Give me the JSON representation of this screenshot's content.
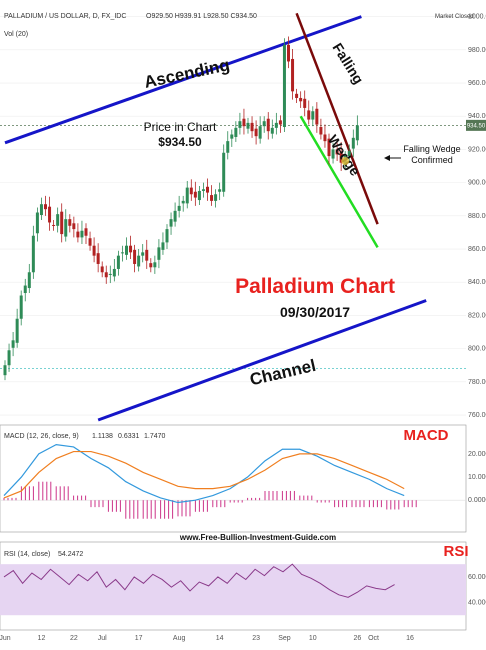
{
  "header": {
    "symbol": "PALLADIUM / US DOLLAR, D, FX_IDC",
    "ohlc": "O929.50  H939.91  L928.50  C934.50",
    "volume": "Vol (20)",
    "market_status": "Market Closed"
  },
  "annotations": {
    "title": "Palladium Chart",
    "date": "09/30/2017",
    "price_label": "Price in Chart",
    "price_value": "$934.50",
    "ascending": "Ascending",
    "channel": "Channel",
    "falling": "Falling",
    "wedge": "Wedge",
    "wedge_note_1": "Falling Wedge",
    "wedge_note_2": "Confirmed",
    "website": "www.Free-Bullion-Investment-Guide.com",
    "macd_tag": "MACD",
    "rsi_tag": "RSI"
  },
  "colors": {
    "up_candle": "#2e8b57",
    "down_candle": "#b22222",
    "channel": "#1515c8",
    "falling_line": "#7a0a0a",
    "wedge_line": "#22dd22",
    "title_red": "#e8221f",
    "macd_line": "#3399dd",
    "signal_line": "#f07f20",
    "histogram": "#cc3388",
    "rsi_line": "#8a3a8a",
    "rsi_band": "#e6d5f2"
  },
  "chart_data": [
    {
      "type": "candlestick",
      "title": "Palladium Chart",
      "subtitle": "09/30/2017",
      "y_ticks": [
        760,
        780,
        800,
        820,
        840,
        860,
        880,
        900,
        920,
        940,
        960,
        980,
        1000
      ],
      "y_tick_labels": [
        "760.00",
        "780.00",
        "800.00",
        "820.00",
        "840.00",
        "860.00",
        "880.00",
        "900.00",
        "920.00",
        "940.00",
        "960.00",
        "980.00",
        "1000.00"
      ],
      "x_tick_labels": [
        "Jun",
        "12",
        "22",
        "Jul",
        "17",
        "Aug",
        "14",
        "23",
        "Sep",
        "10",
        "26",
        "Oct",
        "16"
      ],
      "x_tick_index": [
        0,
        9,
        17,
        24,
        33,
        43,
        53,
        62,
        69,
        76,
        87,
        91,
        100
      ],
      "last_price": "934.50",
      "close_line": 934.5,
      "support_line": 788,
      "closes": [
        790,
        799,
        805,
        818,
        832,
        838,
        846,
        868,
        882,
        887,
        884,
        876,
        874,
        881,
        869,
        878,
        874,
        872,
        867,
        871,
        868,
        862,
        856,
        851,
        846,
        843,
        845,
        848,
        856,
        858,
        862,
        858,
        851,
        856,
        858,
        853,
        849,
        852,
        861,
        864,
        872,
        878,
        883,
        886,
        889,
        897,
        893,
        891,
        895,
        896,
        894,
        889,
        893,
        896,
        918,
        925,
        929,
        933,
        937,
        934,
        936,
        931,
        928,
        934,
        937,
        931,
        933,
        936,
        935,
        983,
        973,
        955,
        951,
        949,
        945,
        938,
        943,
        935,
        929,
        925,
        916,
        920,
        917,
        912,
        916,
        919,
        927,
        934.5
      ],
      "channel_upper": [
        [
          0,
          924
        ],
        [
          88,
          1000
        ]
      ],
      "channel_lower": [
        [
          23,
          757
        ],
        [
          104,
          829
        ]
      ],
      "falling_line": [
        [
          72,
          1002
        ],
        [
          92,
          875
        ]
      ],
      "wedge_line": [
        [
          73,
          940
        ],
        [
          92,
          861
        ]
      ]
    },
    {
      "type": "line",
      "title": "MACD (12, 26, close, 9)",
      "legend_values": [
        "1.1138",
        "0.6331",
        "1.7470"
      ],
      "y_ticks": [
        "20.0000",
        "10.0000",
        "0.0000"
      ],
      "series": [
        {
          "name": "MACD",
          "values": [
            2,
            10,
            20,
            24,
            23,
            18,
            14,
            8,
            4,
            1,
            -1,
            0,
            2,
            5,
            10,
            17,
            22,
            22,
            19,
            15,
            12,
            9,
            5,
            2
          ]
        },
        {
          "name": "Signal",
          "values": [
            1,
            4,
            12,
            18,
            21,
            21,
            19,
            16,
            12,
            9,
            6,
            5,
            5,
            6,
            9,
            13,
            18,
            20,
            20,
            18,
            15,
            12,
            9,
            5
          ]
        }
      ],
      "histogram": [
        1,
        6,
        8,
        6,
        2,
        -3,
        -5,
        -8,
        -8,
        -8,
        -7,
        -5,
        -3,
        -1,
        1,
        4,
        4,
        2,
        -1,
        -3,
        -3,
        -3,
        -4,
        -3
      ]
    },
    {
      "type": "line",
      "title": "RSI (14, close)",
      "legend_values": [
        "54.2472"
      ],
      "y_ticks": [
        "60.0000",
        "40.0000"
      ],
      "band": [
        30,
        70
      ],
      "values": [
        60,
        65,
        55,
        63,
        58,
        66,
        60,
        54,
        62,
        57,
        64,
        52,
        58,
        50,
        60,
        55,
        62,
        58,
        52,
        57,
        49,
        56,
        53,
        60,
        55,
        63,
        58,
        66,
        61,
        68,
        64,
        70,
        62,
        59,
        55,
        50,
        46,
        44,
        48,
        53,
        51,
        50,
        54
      ]
    }
  ]
}
